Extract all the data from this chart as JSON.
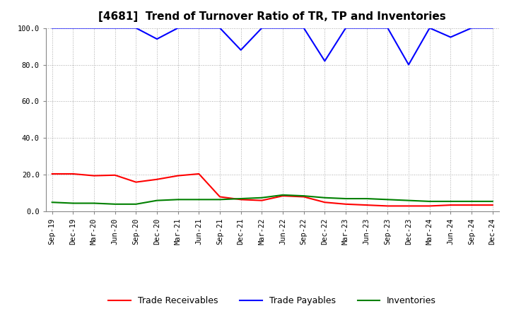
{
  "title": "[4681]  Trend of Turnover Ratio of TR, TP and Inventories",
  "xlabels": [
    "Sep-19",
    "Dec-19",
    "Mar-20",
    "Jun-20",
    "Sep-20",
    "Dec-20",
    "Mar-21",
    "Jun-21",
    "Sep-21",
    "Dec-21",
    "Mar-22",
    "Jun-22",
    "Sep-22",
    "Dec-22",
    "Mar-23",
    "Jun-23",
    "Sep-23",
    "Dec-23",
    "Mar-24",
    "Jun-24",
    "Sep-24",
    "Dec-24"
  ],
  "ylim": [
    0.0,
    100.0
  ],
  "yticks": [
    0.0,
    20.0,
    40.0,
    60.0,
    80.0,
    100.0
  ],
  "trade_receivables": [
    20.5,
    20.5,
    19.5,
    19.8,
    16.0,
    17.5,
    19.5,
    20.5,
    8.0,
    6.5,
    6.0,
    8.5,
    8.0,
    5.0,
    4.0,
    3.5,
    3.0,
    3.0,
    3.0,
    3.5,
    3.5,
    3.5
  ],
  "trade_payables": [
    100.0,
    100.0,
    100.0,
    100.0,
    100.0,
    94.0,
    100.0,
    100.0,
    100.0,
    88.0,
    100.0,
    100.0,
    100.0,
    82.0,
    100.0,
    100.0,
    100.0,
    80.0,
    100.0,
    95.0,
    100.0,
    100.0
  ],
  "inventories": [
    5.0,
    4.5,
    4.5,
    4.0,
    4.0,
    6.0,
    6.5,
    6.5,
    6.5,
    7.0,
    7.5,
    9.0,
    8.5,
    7.5,
    7.0,
    7.0,
    6.5,
    6.0,
    5.5,
    5.5,
    5.5,
    5.5
  ],
  "tr_color": "#ff0000",
  "tp_color": "#0000ff",
  "inv_color": "#008000",
  "bg_color": "#ffffff",
  "grid_color": "#aaaaaa",
  "title_fontsize": 11,
  "legend_fontsize": 9,
  "tick_fontsize": 7.5
}
